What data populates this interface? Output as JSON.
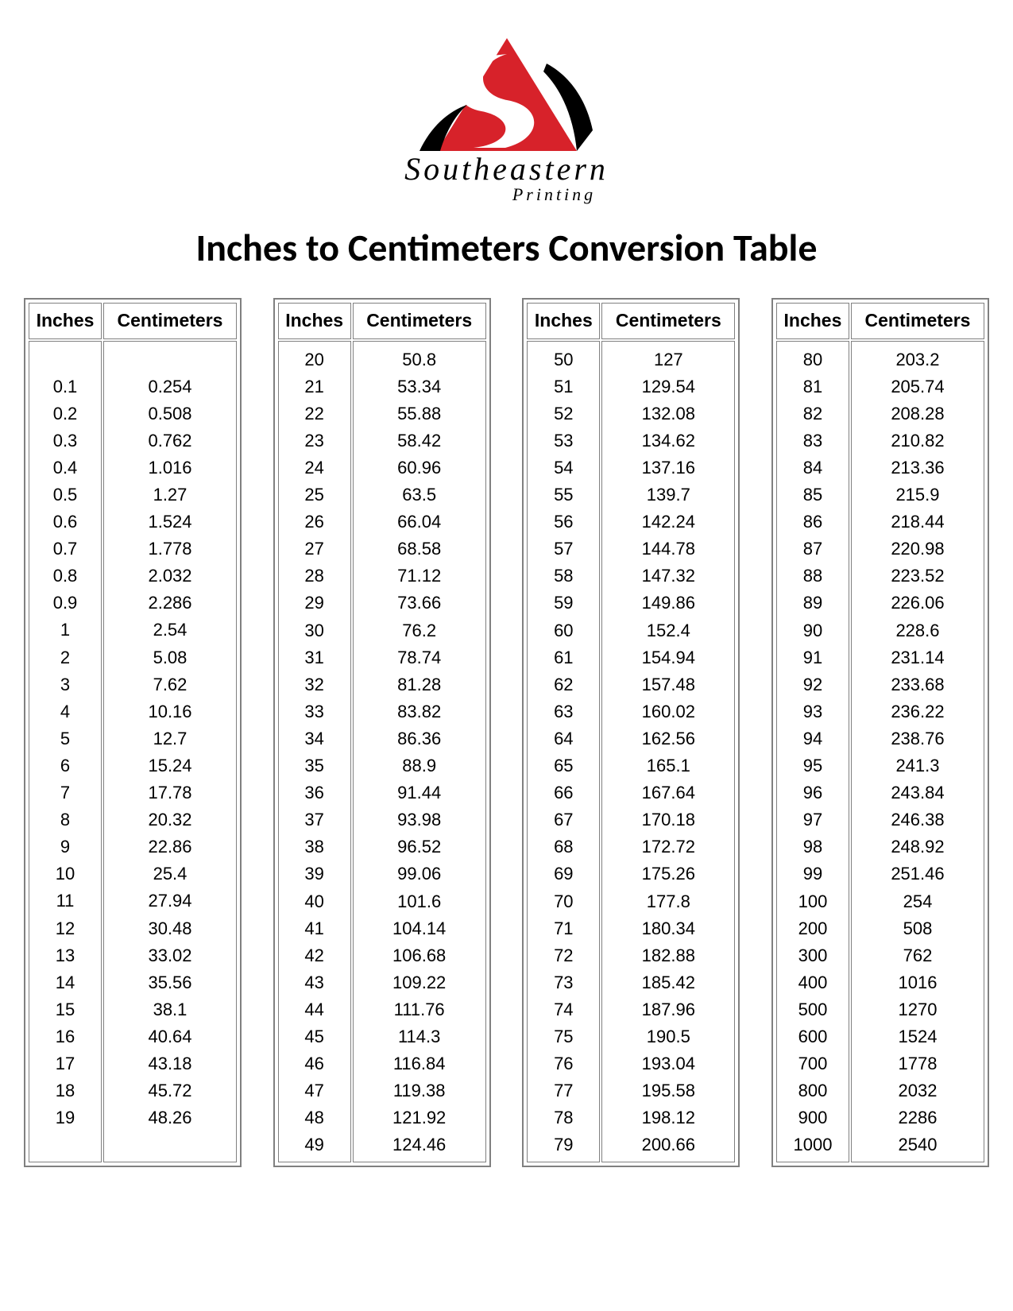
{
  "logo": {
    "triangle_color": "#d7222a",
    "accent_color": "#000000",
    "brand_line1": "Southeastern",
    "brand_line2": "Printing"
  },
  "title": "Inches to Centimeters Conversion Table",
  "headers": {
    "col1": "Inches",
    "col2": "Centimeters"
  },
  "tables": [
    {
      "leading_blank": true,
      "rows": [
        [
          "0.1",
          "0.254"
        ],
        [
          "0.2",
          "0.508"
        ],
        [
          "0.3",
          "0.762"
        ],
        [
          "0.4",
          "1.016"
        ],
        [
          "0.5",
          "1.27"
        ],
        [
          "0.6",
          "1.524"
        ],
        [
          "0.7",
          "1.778"
        ],
        [
          "0.8",
          "2.032"
        ],
        [
          "0.9",
          "2.286"
        ],
        [
          "1",
          "2.54"
        ],
        [
          "2",
          "5.08"
        ],
        [
          "3",
          "7.62"
        ],
        [
          "4",
          "10.16"
        ],
        [
          "5",
          "12.7"
        ],
        [
          "6",
          "15.24"
        ],
        [
          "7",
          "17.78"
        ],
        [
          "8",
          "20.32"
        ],
        [
          "9",
          "22.86"
        ],
        [
          "10",
          "25.4"
        ],
        [
          "11",
          "27.94"
        ],
        [
          "12",
          "30.48"
        ],
        [
          "13",
          "33.02"
        ],
        [
          "14",
          "35.56"
        ],
        [
          "15",
          "38.1"
        ],
        [
          "16",
          "40.64"
        ],
        [
          "17",
          "43.18"
        ],
        [
          "18",
          "45.72"
        ],
        [
          "19",
          "48.26"
        ]
      ],
      "trailing_blank": true
    },
    {
      "leading_blank": false,
      "rows": [
        [
          "20",
          "50.8"
        ],
        [
          "21",
          "53.34"
        ],
        [
          "22",
          "55.88"
        ],
        [
          "23",
          "58.42"
        ],
        [
          "24",
          "60.96"
        ],
        [
          "25",
          "63.5"
        ],
        [
          "26",
          "66.04"
        ],
        [
          "27",
          "68.58"
        ],
        [
          "28",
          "71.12"
        ],
        [
          "29",
          "73.66"
        ],
        [
          "30",
          "76.2"
        ],
        [
          "31",
          "78.74"
        ],
        [
          "32",
          "81.28"
        ],
        [
          "33",
          "83.82"
        ],
        [
          "34",
          "86.36"
        ],
        [
          "35",
          "88.9"
        ],
        [
          "36",
          "91.44"
        ],
        [
          "37",
          "93.98"
        ],
        [
          "38",
          "96.52"
        ],
        [
          "39",
          "99.06"
        ],
        [
          "40",
          "101.6"
        ],
        [
          "41",
          "104.14"
        ],
        [
          "42",
          "106.68"
        ],
        [
          "43",
          "109.22"
        ],
        [
          "44",
          "111.76"
        ],
        [
          "45",
          "114.3"
        ],
        [
          "46",
          "116.84"
        ],
        [
          "47",
          "119.38"
        ],
        [
          "48",
          "121.92"
        ],
        [
          "49",
          "124.46"
        ]
      ],
      "trailing_blank": false
    },
    {
      "leading_blank": false,
      "rows": [
        [
          "50",
          "127"
        ],
        [
          "51",
          "129.54"
        ],
        [
          "52",
          "132.08"
        ],
        [
          "53",
          "134.62"
        ],
        [
          "54",
          "137.16"
        ],
        [
          "55",
          "139.7"
        ],
        [
          "56",
          "142.24"
        ],
        [
          "57",
          "144.78"
        ],
        [
          "58",
          "147.32"
        ],
        [
          "59",
          "149.86"
        ],
        [
          "60",
          "152.4"
        ],
        [
          "61",
          "154.94"
        ],
        [
          "62",
          "157.48"
        ],
        [
          "63",
          "160.02"
        ],
        [
          "64",
          "162.56"
        ],
        [
          "65",
          "165.1"
        ],
        [
          "66",
          "167.64"
        ],
        [
          "67",
          "170.18"
        ],
        [
          "68",
          "172.72"
        ],
        [
          "69",
          "175.26"
        ],
        [
          "70",
          "177.8"
        ],
        [
          "71",
          "180.34"
        ],
        [
          "72",
          "182.88"
        ],
        [
          "73",
          "185.42"
        ],
        [
          "74",
          "187.96"
        ],
        [
          "75",
          "190.5"
        ],
        [
          "76",
          "193.04"
        ],
        [
          "77",
          "195.58"
        ],
        [
          "78",
          "198.12"
        ],
        [
          "79",
          "200.66"
        ]
      ],
      "trailing_blank": false
    },
    {
      "leading_blank": false,
      "rows": [
        [
          "80",
          "203.2"
        ],
        [
          "81",
          "205.74"
        ],
        [
          "82",
          "208.28"
        ],
        [
          "83",
          "210.82"
        ],
        [
          "84",
          "213.36"
        ],
        [
          "85",
          "215.9"
        ],
        [
          "86",
          "218.44"
        ],
        [
          "87",
          "220.98"
        ],
        [
          "88",
          "223.52"
        ],
        [
          "89",
          "226.06"
        ],
        [
          "90",
          "228.6"
        ],
        [
          "91",
          "231.14"
        ],
        [
          "92",
          "233.68"
        ],
        [
          "93",
          "236.22"
        ],
        [
          "94",
          "238.76"
        ],
        [
          "95",
          "241.3"
        ],
        [
          "96",
          "243.84"
        ],
        [
          "97",
          "246.38"
        ],
        [
          "98",
          "248.92"
        ],
        [
          "99",
          "251.46"
        ],
        [
          "100",
          "254"
        ],
        [
          "200",
          "508"
        ],
        [
          "300",
          "762"
        ],
        [
          "400",
          "1016"
        ],
        [
          "500",
          "1270"
        ],
        [
          "600",
          "1524"
        ],
        [
          "700",
          "1778"
        ],
        [
          "800",
          "2032"
        ],
        [
          "900",
          "2286"
        ],
        [
          "1000",
          "2540"
        ]
      ],
      "trailing_blank": false
    }
  ]
}
